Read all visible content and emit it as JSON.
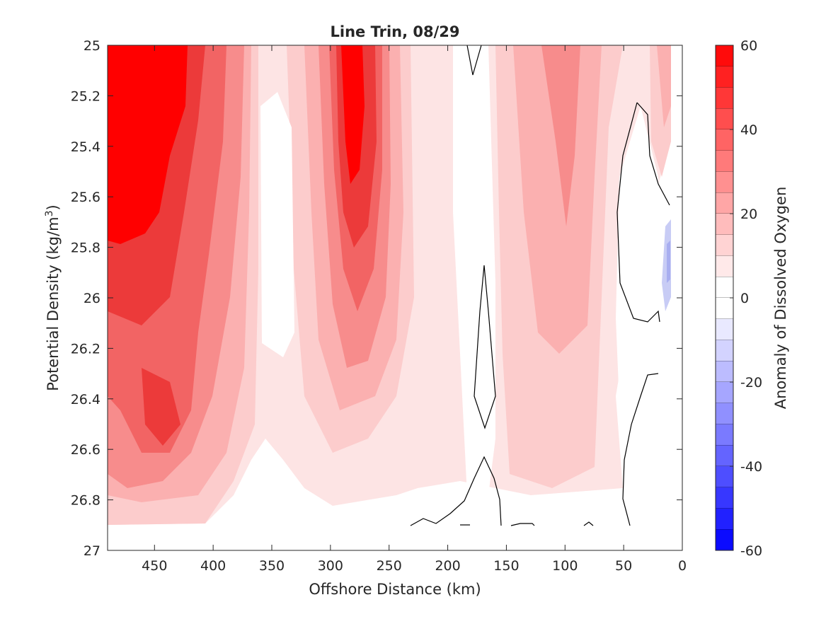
{
  "chart_data": {
    "type": "heatmap",
    "subtype": "filled-contour section",
    "title": "Line Trin, 08/29",
    "xlabel": "Offshore Distance (km)",
    "ylabel_main": "Potential Density (kg/m",
    "ylabel_sup": "3",
    "ylabel_end": ")",
    "x_reversed": true,
    "y_reversed": true,
    "xlim": [
      0,
      490
    ],
    "ylim": [
      25,
      27
    ],
    "xticks": [
      450,
      400,
      350,
      300,
      250,
      200,
      150,
      100,
      50,
      0
    ],
    "xtick_labels": [
      "450",
      "400",
      "350",
      "300",
      "250",
      "200",
      "150",
      "100",
      "50",
      "0"
    ],
    "yticks": [
      25,
      25.2,
      25.4,
      25.6,
      25.8,
      26,
      26.2,
      26.4,
      26.6,
      26.8,
      27
    ],
    "ytick_labels": [
      "25",
      "25.2",
      "25.4",
      "25.6",
      "25.8",
      "26",
      "26.2",
      "26.4",
      "26.6",
      "26.8",
      "27"
    ],
    "data_bottom_density": 26.9,
    "colorbar": {
      "label": "Anomaly of Dissolved Oxygen",
      "range": [
        -60,
        60
      ],
      "levels": 24,
      "ticks": [
        60,
        40,
        20,
        0,
        -20,
        -40,
        -60
      ],
      "tick_labels": [
        "60",
        "40",
        "20",
        "0",
        "-20",
        "-40",
        "-60"
      ]
    },
    "colors": {
      "positive": "#ff0000",
      "negative": "#0000ff",
      "zero": "#ffffff",
      "axis": "#262626",
      "contour": "#000000"
    },
    "grid": false,
    "features": [
      {
        "x_km": 450,
        "y": 25.4,
        "value": 60
      },
      {
        "x_km": 440,
        "y": 26.4,
        "value": 42
      },
      {
        "x_km": 280,
        "y": 25.3,
        "value": 58
      },
      {
        "x_km": 280,
        "y": 26.0,
        "value": 40
      },
      {
        "x_km": 345,
        "y": 25.7,
        "value": 0
      },
      {
        "x_km": 110,
        "y": 25.7,
        "value": 20
      },
      {
        "x_km": 15,
        "y": 25.4,
        "value": 18
      },
      {
        "x_km": 15,
        "y": 25.9,
        "value": -12
      }
    ]
  }
}
